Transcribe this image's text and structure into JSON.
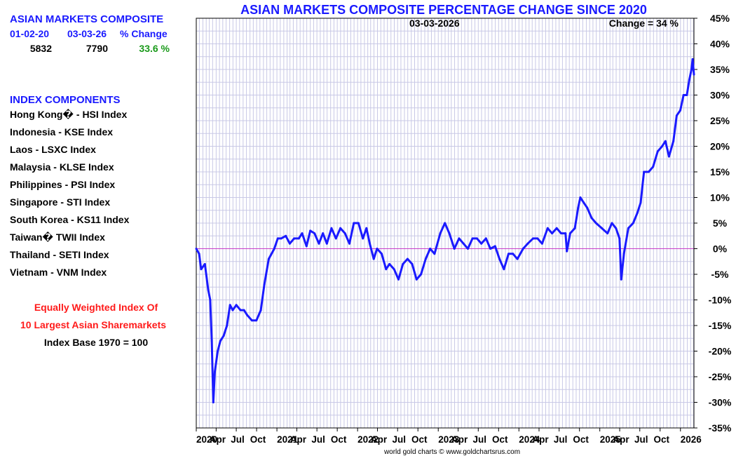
{
  "summary": {
    "title": "ASIAN MARKETS COMPOSITE",
    "headers": [
      "01-02-20",
      "03-03-26",
      "% Change"
    ],
    "start_value": "5832",
    "end_value": "7790",
    "pct_change": "33.6 %"
  },
  "components": {
    "title": "INDEX COMPONENTS",
    "items": [
      "Hong Kong� - HSI Index",
      "Indonesia - KSE Index",
      "Laos - LSXC Index",
      "Malaysia - KLSE Index",
      "Philippines - PSI Index",
      "Singapore - STI Index",
      "South Korea - KS11 Index",
      "Taiwan� TWII Index",
      "Thailand - SETI Index",
      "Vietnam - VNM Index"
    ]
  },
  "notes": {
    "line1": "Equally Weighted Index Of",
    "line2": "10 Largest Asian Sharemarkets",
    "line3": "Index Base 1970 = 100"
  },
  "colors": {
    "line": "#1a1aff",
    "grid": "#c8c8e6",
    "zero_line": "#c83cc8",
    "title": "#1a1aff",
    "green": "#1a9a1a",
    "red": "#ff1a1a"
  },
  "chart_data": {
    "type": "line",
    "title": "ASIAN MARKETS COMPOSITE PERCENTAGE CHANGE SINCE 2020",
    "date_label": "03-03-2026",
    "change_label": "Change = 34 %",
    "source": "world gold charts © www.goldchartsrus.com",
    "ylim": [
      -35,
      45
    ],
    "yticks": [
      45,
      40,
      35,
      30,
      25,
      20,
      15,
      10,
      5,
      0,
      -5,
      -10,
      -15,
      -20,
      -25,
      -30,
      -35
    ],
    "ytick_labels": [
      "45%",
      "40%",
      "35%",
      "30%",
      "25%",
      "20%",
      "15%",
      "10%",
      "5%",
      "0%",
      "-5%",
      "-10%",
      "-15%",
      "-20%",
      "-25%",
      "-30%",
      "-35%"
    ],
    "x_range": [
      "2020-01-02",
      "2026-03-03"
    ],
    "x_ticks": [
      {
        "label": "2020",
        "date": "2020-01-01"
      },
      {
        "label": "Apr",
        "date": "2020-04-01"
      },
      {
        "label": "Jul",
        "date": "2020-07-01"
      },
      {
        "label": "Oct",
        "date": "2020-10-01"
      },
      {
        "label": "2021",
        "date": "2021-01-01"
      },
      {
        "label": "Apr",
        "date": "2021-04-01"
      },
      {
        "label": "Jul",
        "date": "2021-07-01"
      },
      {
        "label": "Oct",
        "date": "2021-10-01"
      },
      {
        "label": "2022",
        "date": "2022-01-01"
      },
      {
        "label": "Apr",
        "date": "2022-04-01"
      },
      {
        "label": "Jul",
        "date": "2022-07-01"
      },
      {
        "label": "Oct",
        "date": "2022-10-01"
      },
      {
        "label": "2023",
        "date": "2023-01-01"
      },
      {
        "label": "Apr",
        "date": "2023-04-01"
      },
      {
        "label": "Jul",
        "date": "2023-07-01"
      },
      {
        "label": "Oct",
        "date": "2023-10-01"
      },
      {
        "label": "2024",
        "date": "2024-01-01"
      },
      {
        "label": "Apr",
        "date": "2024-04-01"
      },
      {
        "label": "Jul",
        "date": "2024-07-01"
      },
      {
        "label": "Oct",
        "date": "2024-10-01"
      },
      {
        "label": "2025",
        "date": "2025-01-01"
      },
      {
        "label": "Apr",
        "date": "2025-04-01"
      },
      {
        "label": "Jul",
        "date": "2025-07-01"
      },
      {
        "label": "Oct",
        "date": "2025-10-01"
      },
      {
        "label": "2026",
        "date": "2026-01-01"
      }
    ],
    "grid": true,
    "series": [
      {
        "points": [
          [
            "2020-01-02",
            0
          ],
          [
            "2020-01-15",
            -1
          ],
          [
            "2020-01-24",
            -4
          ],
          [
            "2020-02-10",
            -3
          ],
          [
            "2020-02-25",
            -8
          ],
          [
            "2020-03-05",
            -10
          ],
          [
            "2020-03-12",
            -18
          ],
          [
            "2020-03-19",
            -30
          ],
          [
            "2020-03-26",
            -24
          ],
          [
            "2020-04-08",
            -20
          ],
          [
            "2020-04-20",
            -18
          ],
          [
            "2020-05-05",
            -17
          ],
          [
            "2020-05-20",
            -15
          ],
          [
            "2020-06-03",
            -11
          ],
          [
            "2020-06-15",
            -12
          ],
          [
            "2020-07-01",
            -11
          ],
          [
            "2020-07-20",
            -12
          ],
          [
            "2020-08-05",
            -12
          ],
          [
            "2020-08-20",
            -13
          ],
          [
            "2020-09-10",
            -14
          ],
          [
            "2020-09-30",
            -14
          ],
          [
            "2020-10-20",
            -12
          ],
          [
            "2020-11-05",
            -7
          ],
          [
            "2020-11-25",
            -2
          ],
          [
            "2020-12-20",
            0
          ],
          [
            "2021-01-05",
            2
          ],
          [
            "2021-01-20",
            2
          ],
          [
            "2021-02-10",
            2.5
          ],
          [
            "2021-02-28",
            1
          ],
          [
            "2021-03-20",
            2
          ],
          [
            "2021-04-10",
            2
          ],
          [
            "2021-04-25",
            3
          ],
          [
            "2021-05-15",
            0.5
          ],
          [
            "2021-06-01",
            3.5
          ],
          [
            "2021-06-20",
            3
          ],
          [
            "2021-07-10",
            1
          ],
          [
            "2021-07-28",
            3
          ],
          [
            "2021-08-15",
            1
          ],
          [
            "2021-09-05",
            4
          ],
          [
            "2021-09-25",
            2
          ],
          [
            "2021-10-15",
            4
          ],
          [
            "2021-11-05",
            3
          ],
          [
            "2021-11-25",
            1
          ],
          [
            "2021-12-15",
            5
          ],
          [
            "2022-01-05",
            5
          ],
          [
            "2022-01-25",
            2
          ],
          [
            "2022-02-10",
            4
          ],
          [
            "2022-02-25",
            1
          ],
          [
            "2022-03-15",
            -2
          ],
          [
            "2022-03-30",
            0
          ],
          [
            "2022-04-20",
            -1
          ],
          [
            "2022-05-10",
            -4
          ],
          [
            "2022-05-25",
            -3
          ],
          [
            "2022-06-15",
            -4
          ],
          [
            "2022-07-05",
            -6
          ],
          [
            "2022-07-25",
            -3
          ],
          [
            "2022-08-15",
            -2
          ],
          [
            "2022-09-05",
            -3
          ],
          [
            "2022-09-25",
            -6
          ],
          [
            "2022-10-15",
            -5
          ],
          [
            "2022-11-05",
            -2
          ],
          [
            "2022-11-25",
            0
          ],
          [
            "2022-12-15",
            -1
          ],
          [
            "2023-01-10",
            3
          ],
          [
            "2023-01-31",
            5
          ],
          [
            "2023-02-20",
            3
          ],
          [
            "2023-03-15",
            0
          ],
          [
            "2023-04-05",
            2
          ],
          [
            "2023-04-25",
            1
          ],
          [
            "2023-05-15",
            0
          ],
          [
            "2023-06-05",
            2
          ],
          [
            "2023-06-25",
            2
          ],
          [
            "2023-07-15",
            1
          ],
          [
            "2023-08-05",
            2
          ],
          [
            "2023-08-25",
            0
          ],
          [
            "2023-09-15",
            0.5
          ],
          [
            "2023-10-05",
            -2
          ],
          [
            "2023-10-25",
            -4
          ],
          [
            "2023-11-15",
            -1
          ],
          [
            "2023-12-05",
            -1
          ],
          [
            "2023-12-25",
            -2
          ],
          [
            "2024-01-20",
            0
          ],
          [
            "2024-02-10",
            1
          ],
          [
            "2024-03-05",
            2
          ],
          [
            "2024-03-25",
            2
          ],
          [
            "2024-04-15",
            1
          ],
          [
            "2024-05-10",
            4
          ],
          [
            "2024-05-30",
            3
          ],
          [
            "2024-06-20",
            4
          ],
          [
            "2024-07-10",
            3
          ],
          [
            "2024-07-30",
            3
          ],
          [
            "2024-08-05",
            -0.5
          ],
          [
            "2024-08-20",
            3
          ],
          [
            "2024-09-10",
            4
          ],
          [
            "2024-09-25",
            8
          ],
          [
            "2024-10-05",
            10
          ],
          [
            "2024-10-20",
            9
          ],
          [
            "2024-11-05",
            8
          ],
          [
            "2024-11-25",
            6
          ],
          [
            "2024-12-15",
            5
          ],
          [
            "2025-01-10",
            4
          ],
          [
            "2025-02-05",
            3
          ],
          [
            "2025-02-25",
            5
          ],
          [
            "2025-03-15",
            4
          ],
          [
            "2025-03-31",
            2
          ],
          [
            "2025-04-08",
            -6
          ],
          [
            "2025-04-20",
            -1
          ],
          [
            "2025-05-10",
            4
          ],
          [
            "2025-06-01",
            5
          ],
          [
            "2025-06-20",
            7
          ],
          [
            "2025-07-05",
            9
          ],
          [
            "2025-07-20",
            15
          ],
          [
            "2025-08-10",
            15
          ],
          [
            "2025-08-30",
            16
          ],
          [
            "2025-09-20",
            19
          ],
          [
            "2025-10-10",
            20
          ],
          [
            "2025-10-25",
            21
          ],
          [
            "2025-11-10",
            18
          ],
          [
            "2025-11-30",
            21
          ],
          [
            "2025-12-15",
            26
          ],
          [
            "2025-12-31",
            27
          ],
          [
            "2026-01-15",
            30
          ],
          [
            "2026-01-30",
            30
          ],
          [
            "2026-02-10",
            33
          ],
          [
            "2026-02-20",
            35
          ],
          [
            "2026-02-25",
            37
          ],
          [
            "2026-03-03",
            34
          ]
        ]
      }
    ]
  }
}
